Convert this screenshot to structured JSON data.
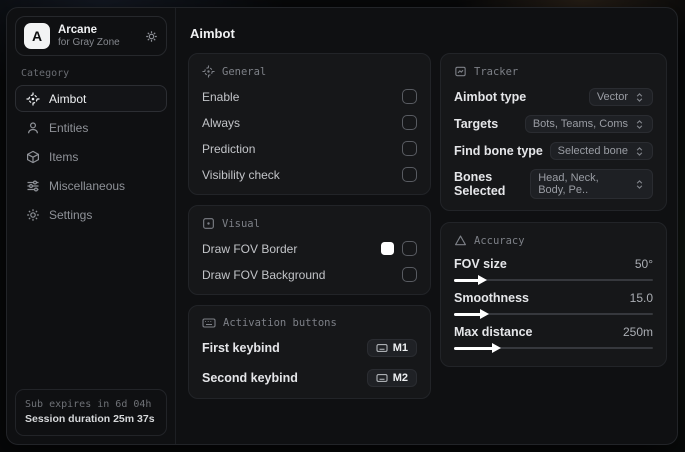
{
  "app": {
    "logo_letter": "A",
    "name": "Arcane",
    "subtitle": "for Gray Zone"
  },
  "sidebar": {
    "category_label": "Category",
    "items": [
      {
        "label": "Aimbot",
        "icon": "crosshair-icon",
        "active": true
      },
      {
        "label": "Entities",
        "icon": "person-icon",
        "active": false
      },
      {
        "label": "Items",
        "icon": "box-icon",
        "active": false
      },
      {
        "label": "Miscellaneous",
        "icon": "sliders-icon",
        "active": false
      },
      {
        "label": "Settings",
        "icon": "gear-icon",
        "active": false
      }
    ],
    "footer": {
      "expires": "Sub expires in 6d 04h",
      "session": "Session duration 25m 37s"
    }
  },
  "main": {
    "title": "Aimbot",
    "general": {
      "title": "General",
      "rows": [
        {
          "label": "Enable",
          "checked": false
        },
        {
          "label": "Always",
          "checked": false
        },
        {
          "label": "Prediction",
          "checked": false
        },
        {
          "label": "Visibility check",
          "checked": false
        }
      ]
    },
    "visual": {
      "title": "Visual",
      "rows": [
        {
          "label": "Draw FOV Border",
          "swatch_color": "#ffffff",
          "checked": false
        },
        {
          "label": "Draw FOV Background",
          "checked": false
        }
      ]
    },
    "activation": {
      "title": "Activation buttons",
      "rows": [
        {
          "label": "First keybind",
          "key": "M1"
        },
        {
          "label": "Second keybind",
          "key": "M2"
        }
      ]
    },
    "tracker": {
      "title": "Tracker",
      "rows": [
        {
          "label": "Aimbot type",
          "value": "Vector"
        },
        {
          "label": "Targets",
          "value": "Bots, Teams, Coms"
        },
        {
          "label": "Find bone type",
          "value": "Selected bone"
        },
        {
          "label": "Bones Selected",
          "value": "Head, Neck, Body, Pe.."
        }
      ]
    },
    "accuracy": {
      "title": "Accuracy",
      "sliders": [
        {
          "label": "FOV size",
          "value": "50°",
          "percent": 13
        },
        {
          "label": "Smoothness",
          "value": "15.0",
          "percent": 14
        },
        {
          "label": "Max distance",
          "value": "250m",
          "percent": 20
        }
      ]
    }
  },
  "colors": {
    "swatch": "#ffffff",
    "window_bg": "#0f1012",
    "card_bg": "#161719",
    "accent_text": "#f0f1f3"
  }
}
